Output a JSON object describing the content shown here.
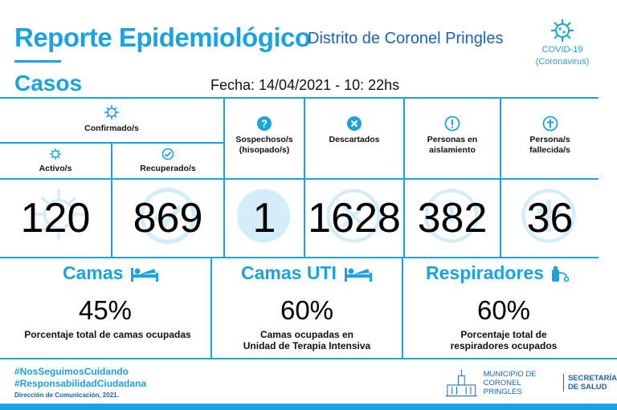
{
  "header": {
    "title": "Reporte Epidemiológico",
    "subtitle": "Distrito de Coronel Pringles",
    "covid_line1": "COVID-19",
    "covid_line2": "(Coronavirus)"
  },
  "cases": {
    "section_title": "Casos",
    "date": "Fecha: 14/04/2021 - 10: 22hs",
    "confirmed_label": "Confirmado/s",
    "active_label": "Activo/s",
    "recovered_label": "Recuperado/s",
    "suspected_label_1": "Sospechoso/s",
    "suspected_label_2": "(hisopado/s)",
    "discarded_label": "Descartados",
    "isolation_label_1": "Personas en",
    "isolation_label_2": "aislamiento",
    "deceased_label_1": "Persona/s",
    "deceased_label_2": "fallecida/s",
    "active": "120",
    "recovered": "869",
    "suspected": "1",
    "discarded": "1628",
    "isolation": "382",
    "deceased": "36"
  },
  "beds": {
    "title": "Camas",
    "percent": "45%",
    "desc": "Porcentaje total de camas ocupadas"
  },
  "icu": {
    "title": "Camas UTI",
    "percent": "60%",
    "desc_1": "Camas ocupadas en",
    "desc_2": "Unidad de Terapia Intensiva"
  },
  "ventilators": {
    "title": "Respiradores",
    "percent": "60%",
    "desc_1": "Porcentaje total de",
    "desc_2": "respiradores ocupados"
  },
  "footer": {
    "hashtag_1": "#NosSeguimosCuidando",
    "hashtag_2": "#ResponsabilidadCiudadana",
    "credit": "Dirección de Comunicación, 2021.",
    "muni_1": "MUNICIPIO DE",
    "muni_2": "CORONEL PRINGLES",
    "sec_1": "SECRETARÍA",
    "sec_2": "DE SALUD"
  },
  "colors": {
    "accent": "#1aa3e0",
    "dark_blue": "#1a63b5"
  },
  "icons": [
    "virus-icon",
    "check-icon",
    "question-icon",
    "x-icon",
    "exclamation-icon",
    "cross-icon",
    "bed-icon",
    "ventilator-icon",
    "town-hall-icon"
  ]
}
